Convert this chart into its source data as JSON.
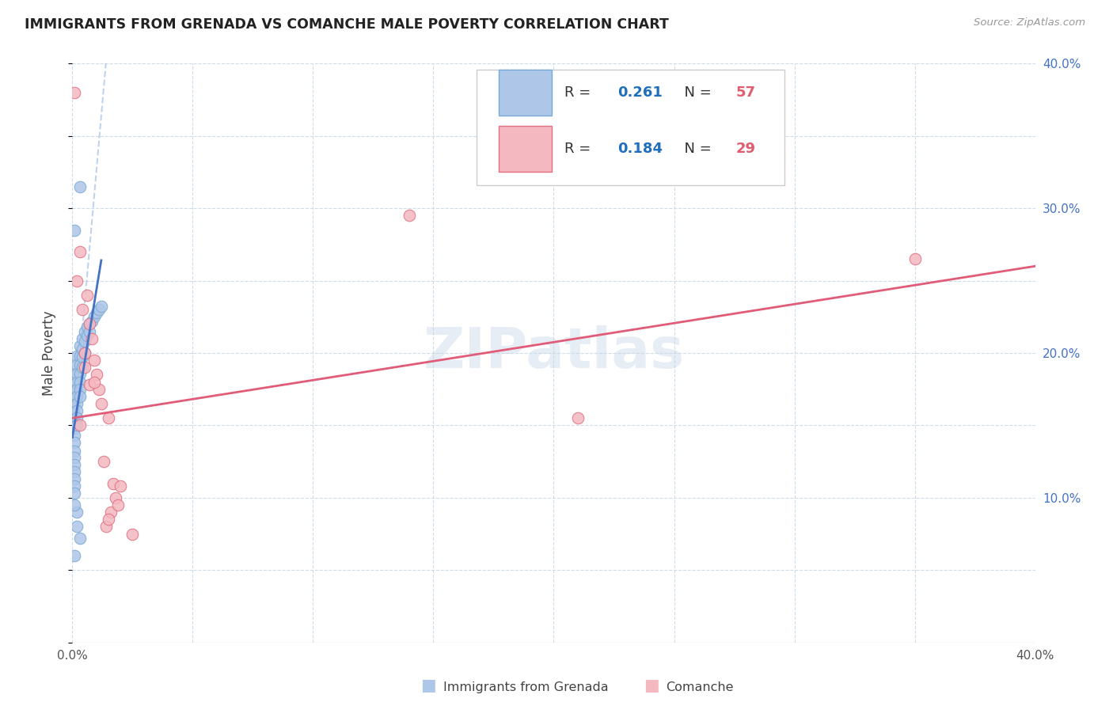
{
  "title": "IMMIGRANTS FROM GRENADA VS COMANCHE MALE POVERTY CORRELATION CHART",
  "source": "Source: ZipAtlas.com",
  "ylabel": "Male Poverty",
  "xlim": [
    0.0,
    0.4
  ],
  "ylim": [
    0.0,
    0.4
  ],
  "xticks": [
    0.0,
    0.05,
    0.1,
    0.15,
    0.2,
    0.25,
    0.3,
    0.35,
    0.4
  ],
  "yticks": [
    0.0,
    0.05,
    0.1,
    0.15,
    0.2,
    0.25,
    0.3,
    0.35,
    0.4
  ],
  "xticklabels": [
    "0.0%",
    "",
    "",
    "",
    "",
    "",
    "",
    "",
    "40.0%"
  ],
  "yticklabels_right": [
    "",
    "",
    "10.0%",
    "",
    "20.0%",
    "",
    "30.0%",
    "",
    "40.0%"
  ],
  "blue_color": "#aec6e8",
  "blue_edge": "#7aaad4",
  "pink_color": "#f4b8c1",
  "pink_edge": "#e07080",
  "blue_line_color": "#4472c4",
  "pink_line_color": "#e05c78",
  "ref_line_color": "#b0c8e8",
  "legend_R_color": "#1f6fbd",
  "legend_N_color": "#e05c6e",
  "watermark": "ZIPatlas",
  "blue_R": "0.261",
  "blue_N": "57",
  "pink_R": "0.184",
  "pink_N": "29",
  "blue_x": [
    0.001,
    0.001,
    0.001,
    0.001,
    0.001,
    0.001,
    0.001,
    0.001,
    0.001,
    0.001,
    0.001,
    0.001,
    0.001,
    0.001,
    0.001,
    0.001,
    0.001,
    0.002,
    0.002,
    0.002,
    0.002,
    0.002,
    0.002,
    0.002,
    0.002,
    0.002,
    0.002,
    0.003,
    0.003,
    0.003,
    0.003,
    0.003,
    0.003,
    0.003,
    0.004,
    0.004,
    0.004,
    0.004,
    0.005,
    0.005,
    0.005,
    0.006,
    0.006,
    0.007,
    0.007,
    0.008,
    0.009,
    0.01,
    0.011,
    0.012,
    0.001,
    0.001,
    0.002,
    0.003,
    0.001,
    0.002,
    0.003
  ],
  "blue_y": [
    0.185,
    0.178,
    0.172,
    0.168,
    0.163,
    0.158,
    0.153,
    0.148,
    0.143,
    0.138,
    0.132,
    0.128,
    0.123,
    0.118,
    0.113,
    0.108,
    0.103,
    0.198,
    0.192,
    0.186,
    0.18,
    0.175,
    0.17,
    0.165,
    0.16,
    0.155,
    0.15,
    0.205,
    0.198,
    0.192,
    0.186,
    0.18,
    0.175,
    0.17,
    0.21,
    0.203,
    0.197,
    0.19,
    0.215,
    0.208,
    0.2,
    0.218,
    0.212,
    0.22,
    0.215,
    0.222,
    0.225,
    0.228,
    0.23,
    0.232,
    0.285,
    0.06,
    0.09,
    0.315,
    0.095,
    0.08,
    0.072
  ],
  "pink_x": [
    0.001,
    0.002,
    0.003,
    0.004,
    0.005,
    0.006,
    0.007,
    0.008,
    0.009,
    0.01,
    0.011,
    0.012,
    0.013,
    0.014,
    0.015,
    0.016,
    0.017,
    0.018,
    0.019,
    0.02,
    0.003,
    0.005,
    0.007,
    0.009,
    0.015,
    0.21,
    0.14,
    0.025,
    0.35
  ],
  "pink_y": [
    0.38,
    0.25,
    0.27,
    0.23,
    0.2,
    0.24,
    0.22,
    0.21,
    0.195,
    0.185,
    0.175,
    0.165,
    0.125,
    0.08,
    0.155,
    0.09,
    0.11,
    0.1,
    0.095,
    0.108,
    0.15,
    0.19,
    0.178,
    0.18,
    0.085,
    0.155,
    0.295,
    0.075,
    0.265
  ],
  "blue_line_x": [
    0.0,
    0.015
  ],
  "blue_line_y": [
    0.138,
    0.42
  ],
  "pink_line_x": [
    0.0,
    0.4
  ],
  "pink_line_y": [
    0.155,
    0.26
  ]
}
